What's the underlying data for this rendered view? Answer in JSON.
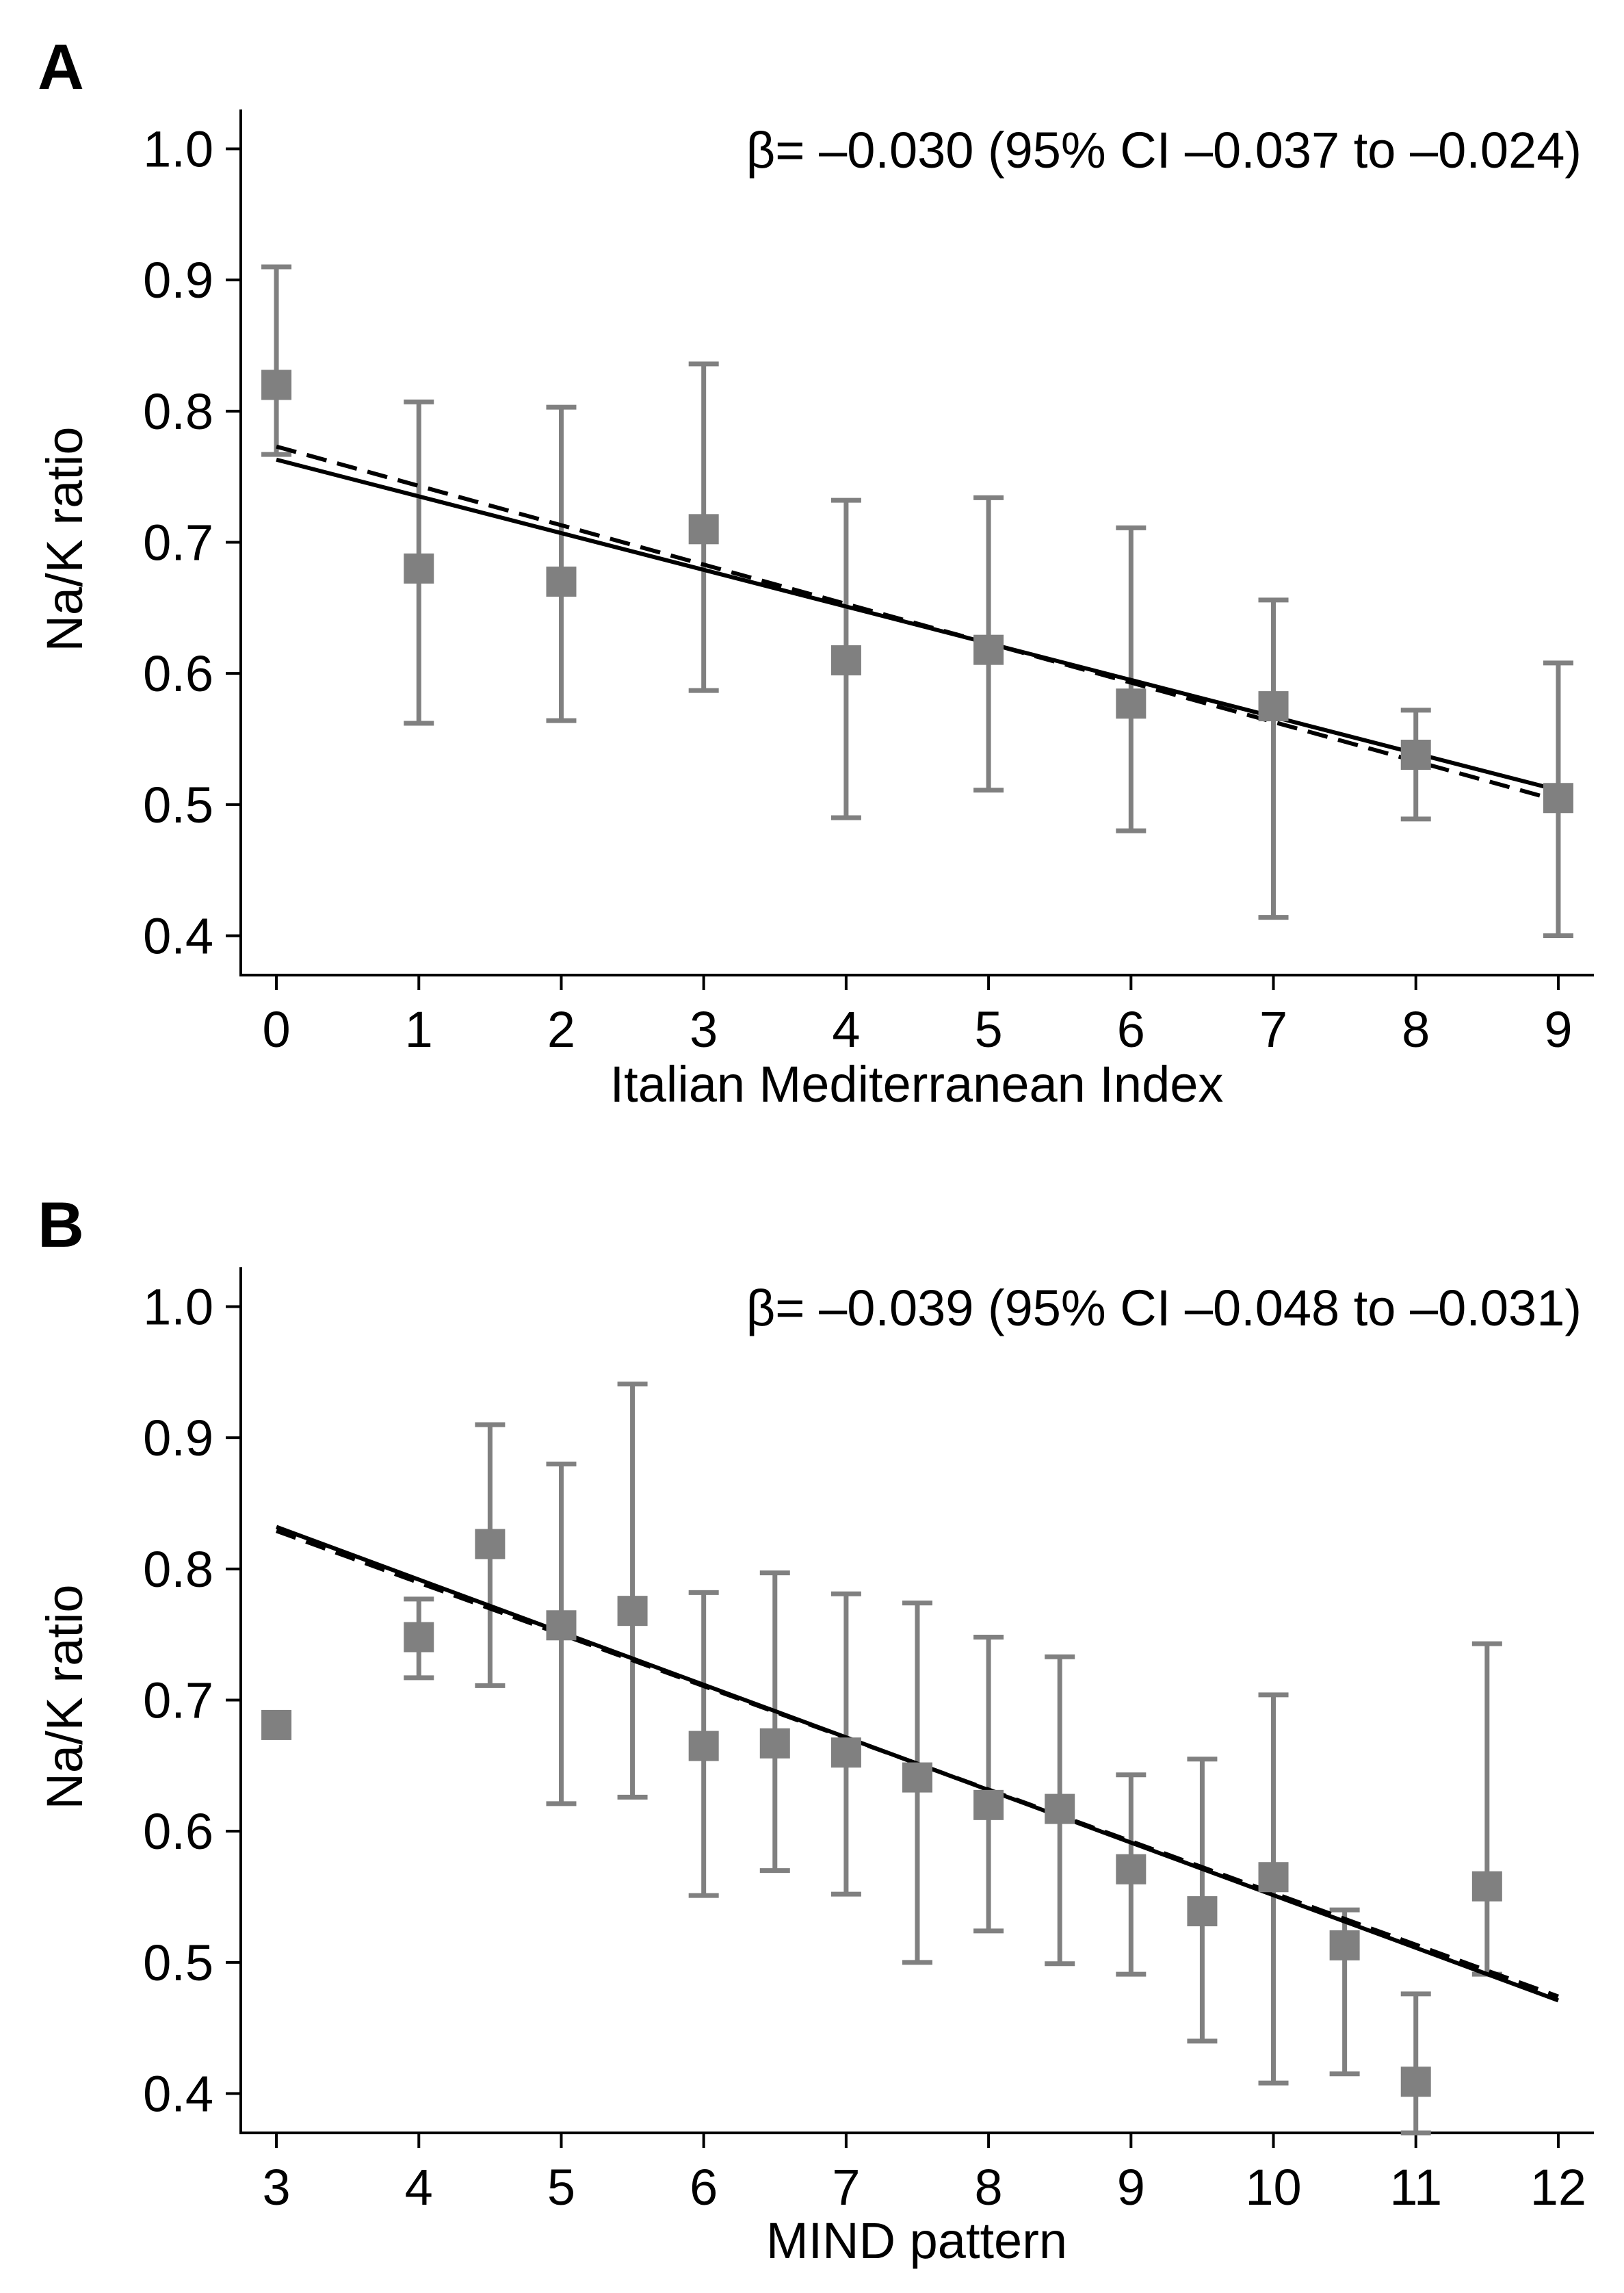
{
  "chart_data": [
    {
      "panel_label": "A",
      "type": "scatter",
      "annotation": "β= –0.030 (95% CI –0.037 to –0.024)",
      "xlabel": "Italian Mediterranean Index",
      "ylabel": "Na/K ratio",
      "xlim": [
        -0.25,
        9.25
      ],
      "ylim": [
        0.37,
        1.03
      ],
      "x_ticks": [
        0,
        1,
        2,
        3,
        4,
        5,
        6,
        7,
        8,
        9
      ],
      "x_tick_labels": [
        "0",
        "1",
        "2",
        "3",
        "4",
        "5",
        "6",
        "7",
        "8",
        "9"
      ],
      "y_ticks": [
        0.4,
        0.5,
        0.6,
        0.7,
        0.8,
        0.9,
        1.0
      ],
      "y_tick_labels": [
        "0.4",
        "0.5",
        "0.6",
        "0.7",
        "0.8",
        "0.9",
        "1.0"
      ],
      "points": [
        {
          "x": 0,
          "y": 0.82,
          "low": 0.767,
          "high": 0.91
        },
        {
          "x": 1,
          "y": 0.68,
          "low": 0.562,
          "high": 0.807
        },
        {
          "x": 2,
          "y": 0.67,
          "low": 0.564,
          "high": 0.803
        },
        {
          "x": 3,
          "y": 0.71,
          "low": 0.587,
          "high": 0.836
        },
        {
          "x": 4,
          "y": 0.61,
          "low": 0.49,
          "high": 0.732
        },
        {
          "x": 5,
          "y": 0.618,
          "low": 0.511,
          "high": 0.734
        },
        {
          "x": 6,
          "y": 0.577,
          "low": 0.48,
          "high": 0.711
        },
        {
          "x": 7,
          "y": 0.575,
          "low": 0.414,
          "high": 0.656
        },
        {
          "x": 8,
          "y": 0.538,
          "low": 0.489,
          "high": 0.572
        },
        {
          "x": 9,
          "y": 0.505,
          "low": 0.4,
          "high": 0.608
        }
      ],
      "fit_lines": [
        {
          "style": "solid",
          "x": [
            0,
            9
          ],
          "y": [
            0.763,
            0.511
          ]
        },
        {
          "style": "dashed",
          "x": [
            0,
            9
          ],
          "y": [
            0.773,
            0.503
          ]
        }
      ]
    },
    {
      "panel_label": "B",
      "type": "scatter",
      "annotation": "β= –0.039 (95% CI –0.048 to –0.031)",
      "xlabel": "MIND pattern",
      "ylabel": "Na/K ratio",
      "xlim": [
        2.75,
        12.25
      ],
      "ylim": [
        0.37,
        1.03
      ],
      "x_ticks": [
        3,
        4,
        5,
        6,
        7,
        8,
        9,
        10,
        11,
        12
      ],
      "x_tick_labels": [
        "3",
        "4",
        "5",
        "6",
        "7",
        "8",
        "9",
        "10",
        "11",
        "12"
      ],
      "y_ticks": [
        0.4,
        0.5,
        0.6,
        0.7,
        0.8,
        0.9,
        1.0
      ],
      "y_tick_labels": [
        "0.4",
        "0.5",
        "0.6",
        "0.7",
        "0.8",
        "0.9",
        "1.0"
      ],
      "points": [
        {
          "x": 3,
          "y": 0.681,
          "low": null,
          "high": null
        },
        {
          "x": 4,
          "y": 0.748,
          "low": 0.717,
          "high": 0.777
        },
        {
          "x": 4.5,
          "y": 0.819,
          "low": 0.711,
          "high": 0.91
        },
        {
          "x": 5,
          "y": 0.757,
          "low": 0.621,
          "high": 0.88
        },
        {
          "x": 5.5,
          "y": 0.768,
          "low": 0.626,
          "high": 0.941
        },
        {
          "x": 6,
          "y": 0.665,
          "low": 0.551,
          "high": 0.782
        },
        {
          "x": 6.5,
          "y": 0.667,
          "low": 0.57,
          "high": 0.797
        },
        {
          "x": 7,
          "y": 0.66,
          "low": 0.552,
          "high": 0.781
        },
        {
          "x": 7.5,
          "y": 0.641,
          "low": 0.5,
          "high": 0.774
        },
        {
          "x": 8,
          "y": 0.62,
          "low": 0.524,
          "high": 0.748
        },
        {
          "x": 8.5,
          "y": 0.617,
          "low": 0.499,
          "high": 0.733
        },
        {
          "x": 9,
          "y": 0.571,
          "low": 0.491,
          "high": 0.643
        },
        {
          "x": 9.5,
          "y": 0.539,
          "low": 0.44,
          "high": 0.655
        },
        {
          "x": 10,
          "y": 0.565,
          "low": 0.408,
          "high": 0.704
        },
        {
          "x": 10.5,
          "y": 0.513,
          "low": 0.415,
          "high": 0.54
        },
        {
          "x": 11,
          "y": 0.409,
          "low": 0.37,
          "high": 0.476
        },
        {
          "x": 11.5,
          "y": 0.558,
          "low": 0.491,
          "high": 0.743
        }
      ],
      "fit_lines": [
        {
          "style": "solid",
          "x": [
            3,
            12
          ],
          "y": [
            0.832,
            0.471
          ]
        },
        {
          "style": "dashed",
          "x": [
            3,
            12
          ],
          "y": [
            0.829,
            0.474
          ]
        }
      ]
    }
  ]
}
